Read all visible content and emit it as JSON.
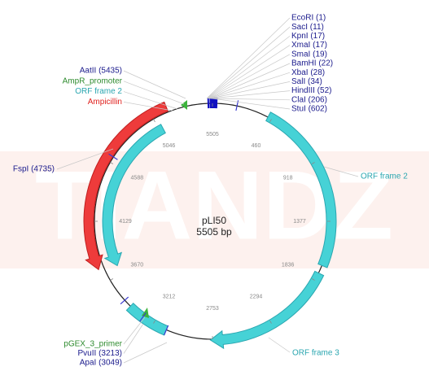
{
  "watermark": "TIANDZ",
  "plasmid": {
    "name": "pLI50",
    "length": "5505 bp"
  },
  "ruler": [
    "5505",
    "460",
    "918",
    "1377",
    "1836",
    "2294",
    "2753",
    "3212",
    "3670",
    "4129",
    "4588",
    "5046"
  ],
  "right_sites": [
    "EcoRI (1)",
    "SacI (11)",
    "KpnI (17)",
    "XmaI (17)",
    "SmaI (19)",
    "BamHI (22)",
    "XbaI (28)",
    "SalI (34)",
    "HindIII (52)",
    "ClaI (206)",
    "StuI (602)"
  ],
  "left_labels": [
    {
      "text": "AatII (5435)",
      "color": "#1a1a8c"
    },
    {
      "text": "AmpR_promoter",
      "color": "#2e8b2e"
    },
    {
      "text": "ORF frame 2",
      "color": "#2aa6b0"
    },
    {
      "text": "Ampicillin",
      "color": "#e0221f"
    }
  ],
  "fspi": {
    "text": "FspI (4735)",
    "color": "#1a1a8c"
  },
  "orf_right": {
    "text": "ORF frame 2",
    "color": "#2aa6b0"
  },
  "orf_bottom": {
    "text": "ORF frame 3",
    "color": "#2aa6b0"
  },
  "bottom_labels": [
    {
      "text": "pGEX_3_primer",
      "color": "#2e8b2e"
    },
    {
      "text": "PvuII (3213)",
      "color": "#1a1a8c"
    },
    {
      "text": "ApaI (3049)",
      "color": "#1a1a8c"
    }
  ]
}
